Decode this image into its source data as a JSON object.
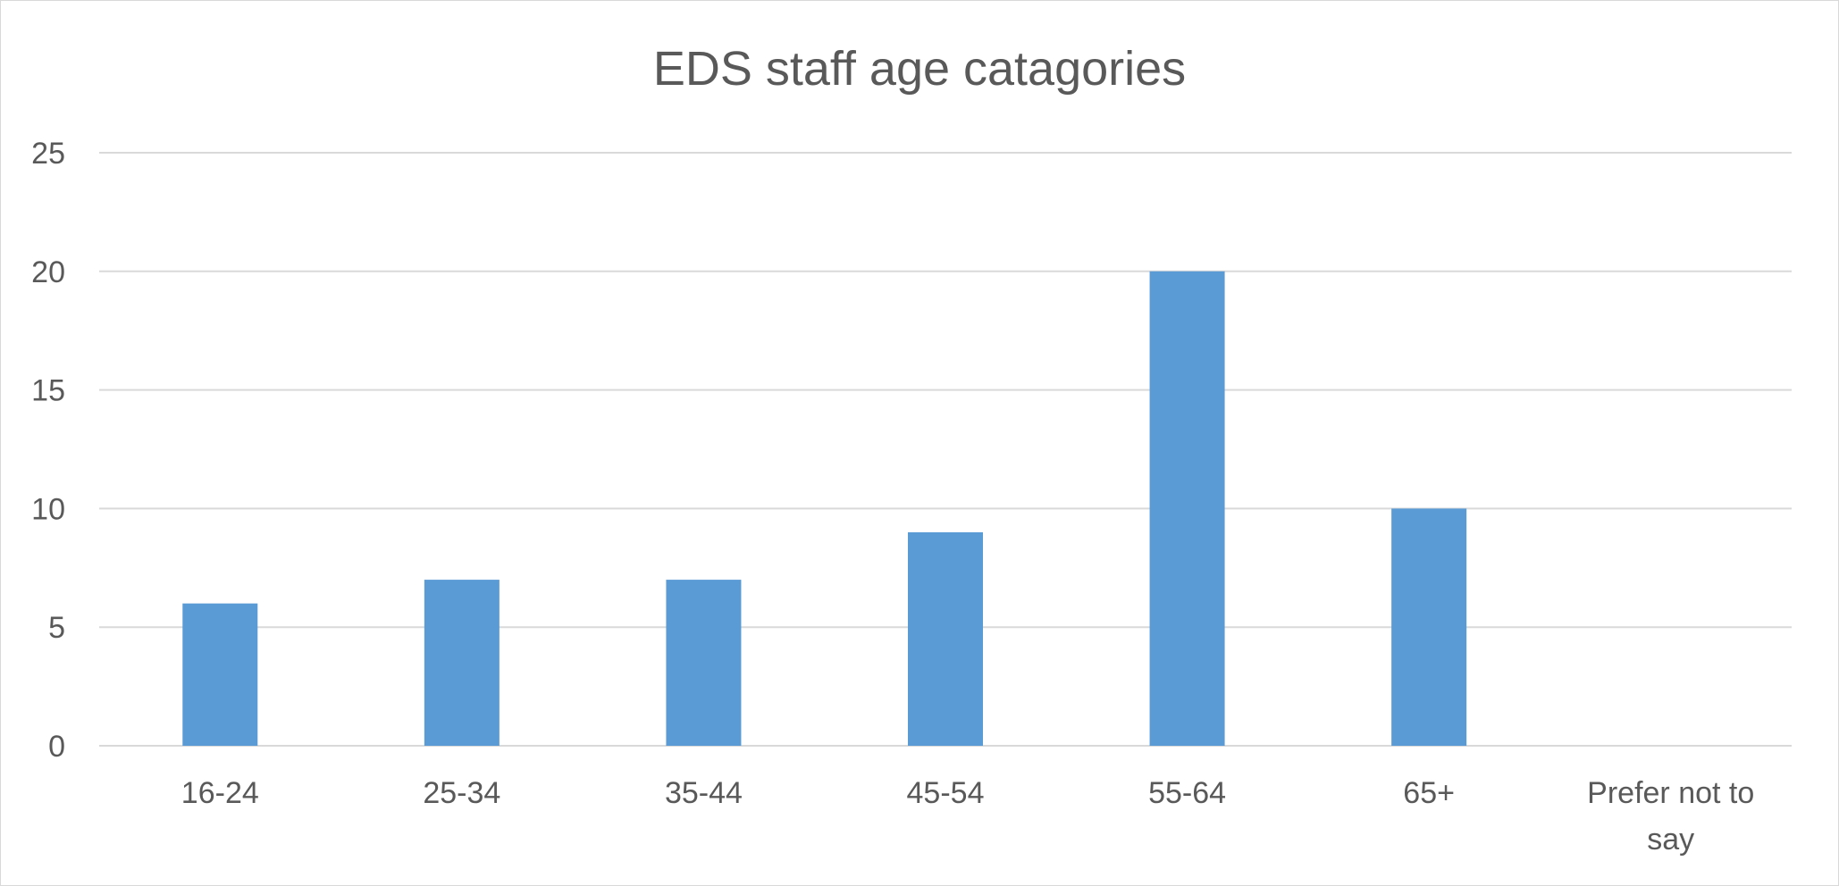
{
  "chart_data": {
    "type": "bar",
    "title": "EDS staff age catagories",
    "categories": [
      "16-24",
      "25-34",
      "35-44",
      "45-54",
      "55-64",
      "65+",
      "Prefer not to say"
    ],
    "values": [
      6,
      7,
      7,
      9,
      20,
      10,
      0
    ],
    "ylim": [
      0,
      25
    ],
    "yticks": [
      0,
      5,
      10,
      15,
      20,
      25
    ],
    "xlabel": "",
    "ylabel": "",
    "grid": true,
    "legend": "none",
    "bar_color": "#5b9bd5"
  }
}
